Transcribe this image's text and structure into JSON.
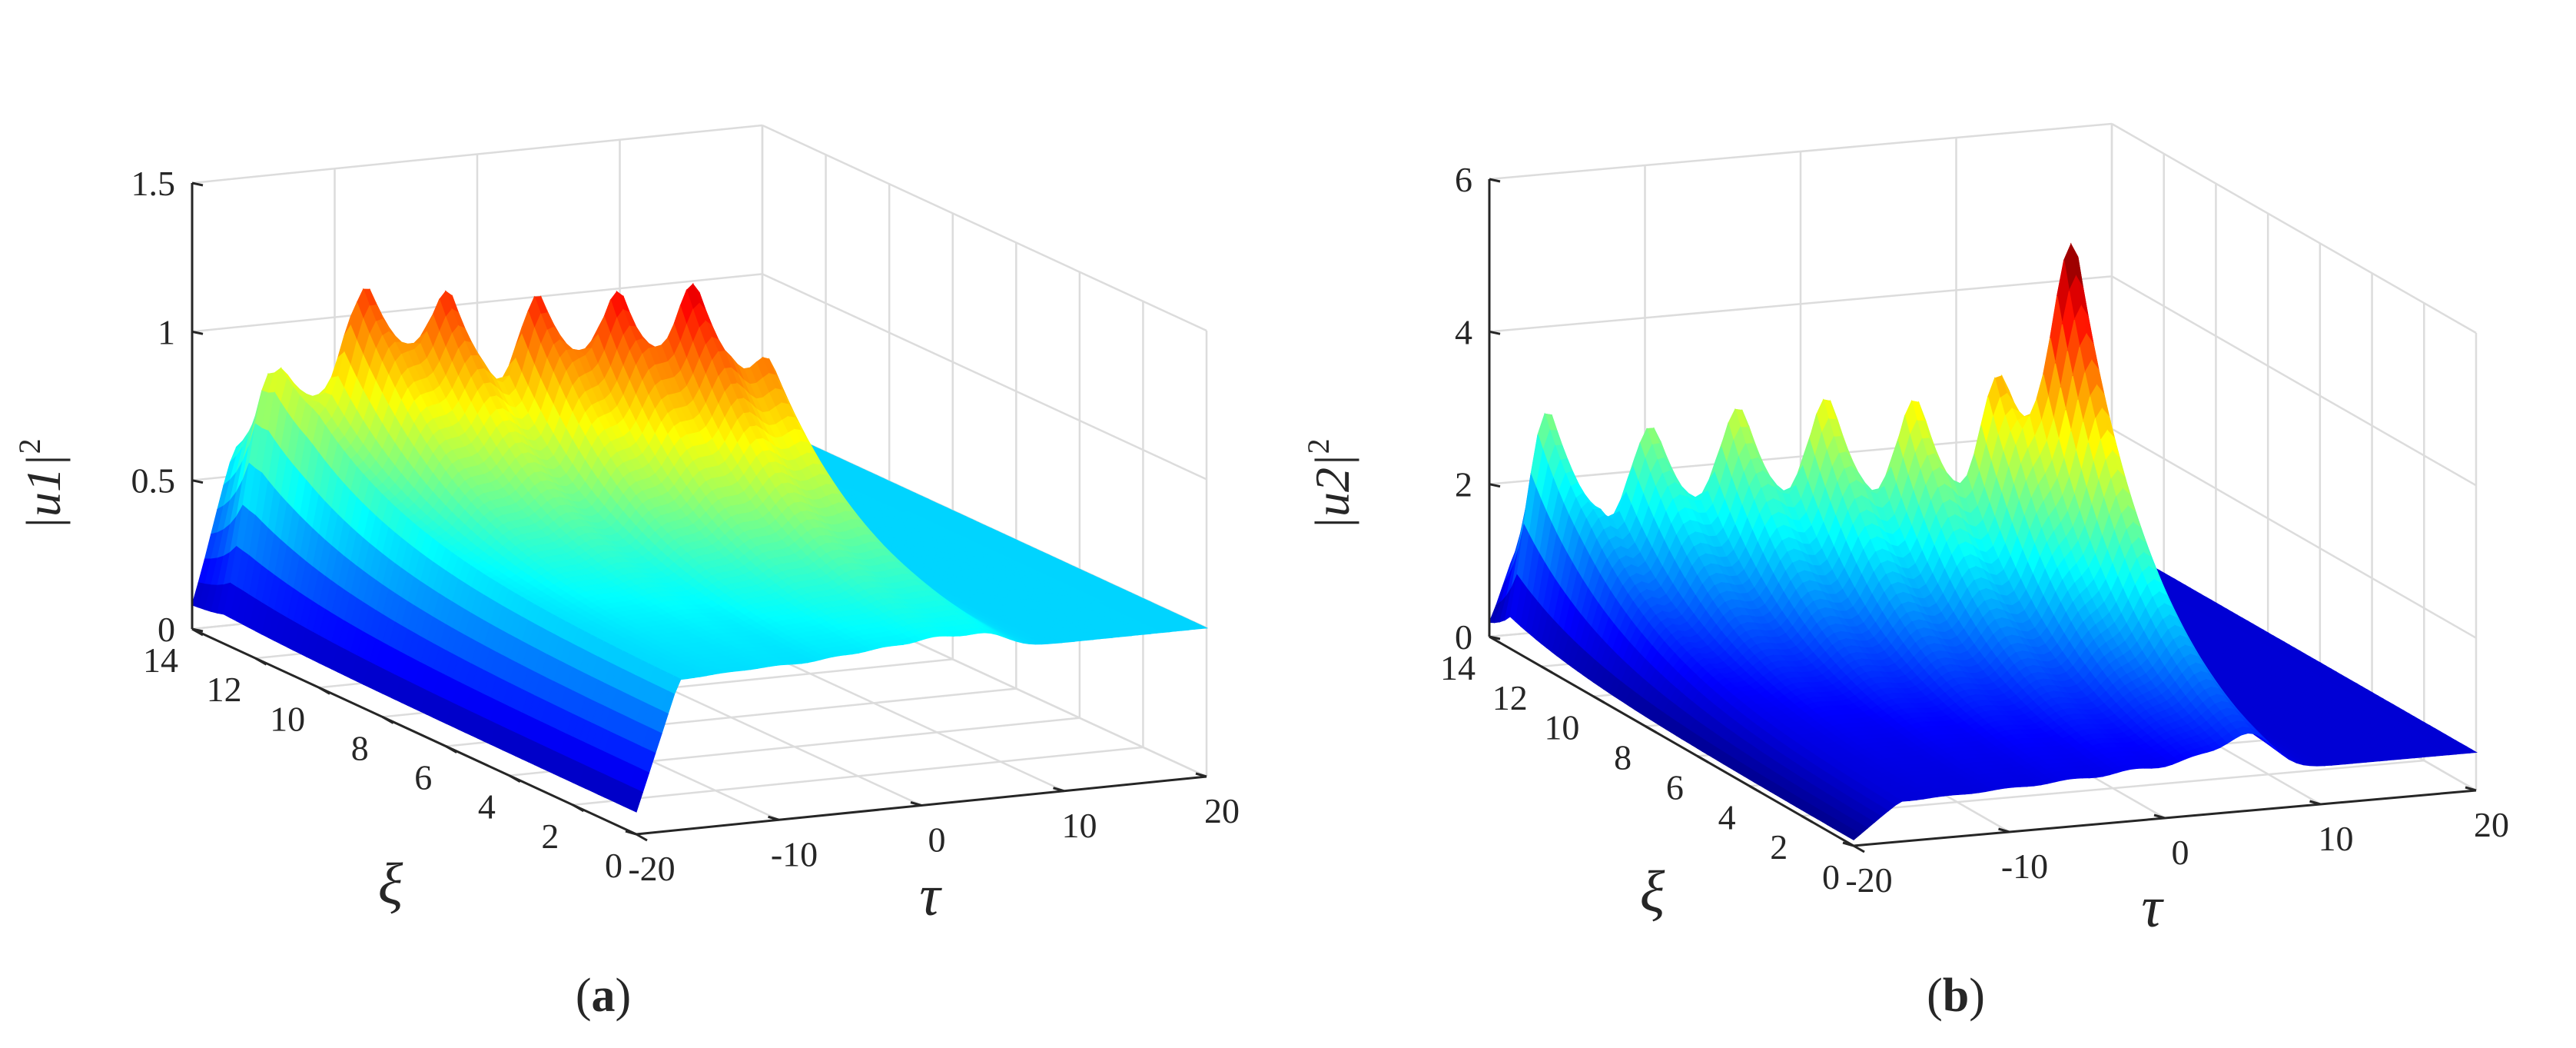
{
  "chart_data": [
    {
      "type": "surface",
      "panel": "a",
      "panel_label": "a",
      "zlabel_base": "|u1|",
      "zlabel_sup": "2",
      "xlabel": "τ",
      "ylabel": "ξ",
      "x_ticks": [
        "-20",
        "-10",
        "0",
        "10",
        "20"
      ],
      "y_ticks": [
        "0",
        "2",
        "4",
        "6",
        "8",
        "10",
        "12",
        "14"
      ],
      "z_ticks": [
        "0",
        "0.5",
        "1",
        "1.5"
      ],
      "xlim": [
        -20,
        20
      ],
      "ylim": [
        0,
        14
      ],
      "zlim": [
        0,
        1.5
      ],
      "colormap": "jet",
      "background_level": 0.5,
      "peaks": [
        {
          "tau": -18,
          "xi": 13.0,
          "z": 0.88
        },
        {
          "tau": -16,
          "xi": 12.6,
          "z": 0.7
        },
        {
          "tau": -13.5,
          "xi": 11.5,
          "z": 1.22
        },
        {
          "tau": -10,
          "xi": 10.5,
          "z": 1.25
        },
        {
          "tau": -6,
          "xi": 9.5,
          "z": 1.28
        },
        {
          "tau": -2.5,
          "xi": 8.5,
          "z": 1.3
        },
        {
          "tau": 1,
          "xi": 7.6,
          "z": 1.32
        },
        {
          "tau": 4.5,
          "xi": 6.8,
          "z": 1.1
        }
      ]
    },
    {
      "type": "surface",
      "panel": "b",
      "panel_label": "b",
      "zlabel_base": "|u2|",
      "zlabel_sup": "2",
      "xlabel": "τ",
      "ylabel": "ξ",
      "x_ticks": [
        "-20",
        "-10",
        "0",
        "10",
        "20"
      ],
      "y_ticks": [
        "0",
        "2",
        "4",
        "6",
        "8",
        "10",
        "12",
        "14"
      ],
      "z_ticks": [
        "0",
        "2",
        "4",
        "6"
      ],
      "xlim": [
        -20,
        20
      ],
      "ylim": [
        0,
        14
      ],
      "zlim": [
        0,
        6
      ],
      "colormap": "jet",
      "background_level": 0.5,
      "peaks": [
        {
          "tau": -18.5,
          "xi": 13.2,
          "z": 4.3
        },
        {
          "tau": -14,
          "xi": 11.5,
          "z": 3.2
        },
        {
          "tau": -10,
          "xi": 10.5,
          "z": 3.55
        },
        {
          "tau": -6,
          "xi": 9.5,
          "z": 3.8
        },
        {
          "tau": -2,
          "xi": 8.5,
          "z": 3.9
        },
        {
          "tau": 2,
          "xi": 7.6,
          "z": 4.1
        },
        {
          "tau": 5.5,
          "xi": 6.8,
          "z": 5.9
        }
      ]
    }
  ]
}
